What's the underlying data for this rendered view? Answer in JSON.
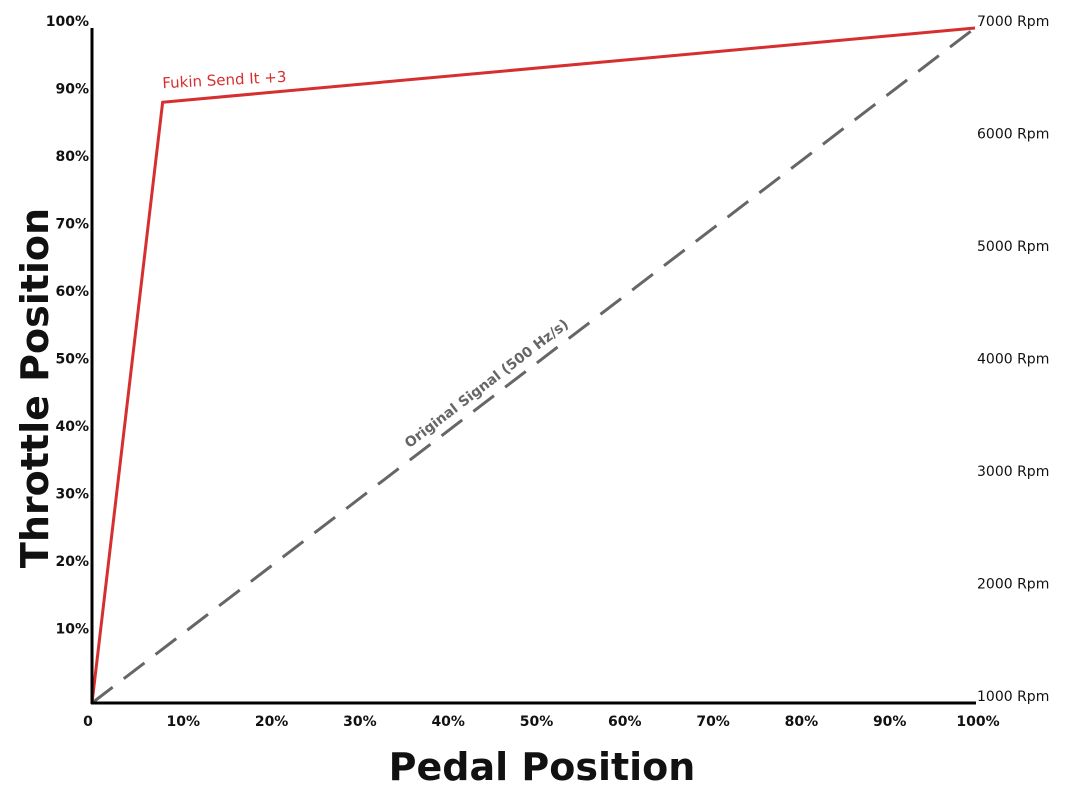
{
  "chart_data": {
    "type": "line",
    "title": "",
    "xlabel": "Pedal Position",
    "ylabel": "Throttle Position",
    "xlim": [
      0,
      100
    ],
    "ylim": [
      0,
      100
    ],
    "x_ticks": [
      "0",
      "10%",
      "20%",
      "30%",
      "40%",
      "50%",
      "60%",
      "70%",
      "80%",
      "90%",
      "100%"
    ],
    "x_tick_values": [
      0,
      10,
      20,
      30,
      40,
      50,
      60,
      70,
      80,
      90,
      100
    ],
    "y_ticks": [
      "10%",
      "20%",
      "30%",
      "40%",
      "50%",
      "60%",
      "70%",
      "80%",
      "90%",
      "100%"
    ],
    "y_tick_values": [
      10,
      20,
      30,
      40,
      50,
      60,
      70,
      80,
      90,
      100
    ],
    "y2_ticks": [
      "1000 Rpm",
      "2000 Rpm",
      "3000 Rpm",
      "4000 Rpm",
      "5000 Rpm",
      "6000 Rpm",
      "7000 Rpm"
    ],
    "y2_tick_values": [
      1000,
      2000,
      3000,
      4000,
      5000,
      6000,
      7000
    ],
    "y2lim": [
      1000,
      7000
    ],
    "grid": false,
    "series": [
      {
        "name": "Fukin Send It +3",
        "color": "#d62f2f",
        "style": "solid",
        "x": [
          0,
          8,
          100
        ],
        "y": [
          0,
          89,
          100
        ]
      },
      {
        "name": "Original Signal (500 Hz/s)",
        "color": "#666666",
        "style": "dashed",
        "x": [
          0,
          100
        ],
        "y": [
          0,
          100
        ]
      }
    ]
  }
}
